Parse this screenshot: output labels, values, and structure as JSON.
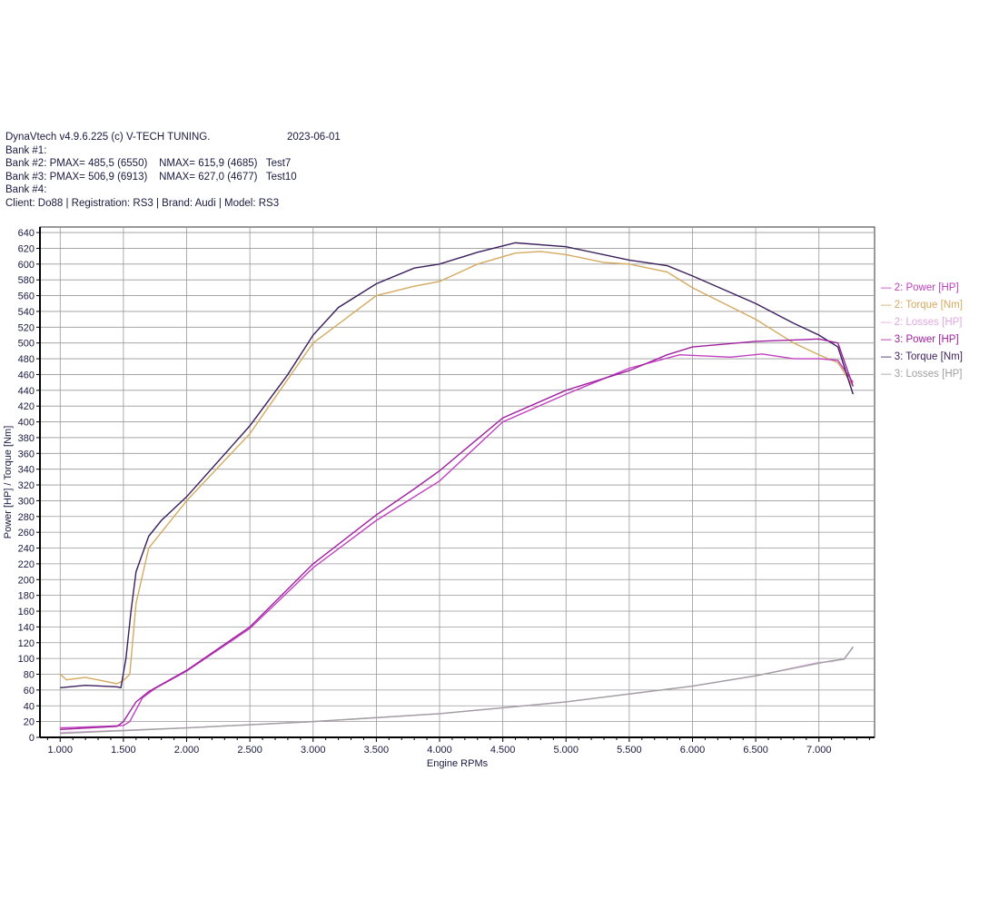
{
  "header": {
    "title": "DynaVtech v4.9.6.225 (c) V-TECH TUNING.",
    "date": "2023-06-01",
    "lines": [
      "Bank #1:",
      "Bank #2: PMAX= 485,5 (6550)    NMAX= 615,9 (4685)   Test7",
      "Bank #3: PMAX= 506,9 (6913)    NMAX= 627,0 (4677)   Test10",
      "Bank #4:",
      "Client: Do88 | Registration: RS3 | Brand: Audi | Model: RS3"
    ]
  },
  "chart_data": {
    "type": "line",
    "xlabel": "Engine RPMs",
    "ylabel": "Power [HP] / Torque [Nm]",
    "xlim": [
      840,
      7440
    ],
    "ylim": [
      0,
      647
    ],
    "xticks": [
      1000,
      1500,
      2000,
      2500,
      3000,
      3500,
      4000,
      4500,
      5000,
      5500,
      6000,
      6500,
      7000
    ],
    "xtick_labels": [
      "1.000",
      "1.500",
      "2.000",
      "2.500",
      "3.000",
      "3.500",
      "4.000",
      "4.500",
      "5.000",
      "5.500",
      "6.000",
      "6.500",
      "7.000"
    ],
    "yticks": [
      0,
      20,
      40,
      60,
      80,
      100,
      120,
      140,
      160,
      180,
      200,
      220,
      240,
      260,
      280,
      300,
      320,
      340,
      360,
      380,
      400,
      420,
      440,
      460,
      480,
      500,
      520,
      540,
      560,
      580,
      600,
      620,
      640
    ],
    "grid": true,
    "legend_position": "right",
    "series": [
      {
        "name": "2: Power [HP]",
        "color": "#c040c0",
        "points": [
          [
            1000,
            12
          ],
          [
            1500,
            15
          ],
          [
            1550,
            20
          ],
          [
            1650,
            50
          ],
          [
            1750,
            62
          ],
          [
            2000,
            84
          ],
          [
            2500,
            138
          ],
          [
            3000,
            215
          ],
          [
            3500,
            275
          ],
          [
            4000,
            325
          ],
          [
            4500,
            400
          ],
          [
            5000,
            435
          ],
          [
            5500,
            468
          ],
          [
            5900,
            485
          ],
          [
            6300,
            482
          ],
          [
            6550,
            486
          ],
          [
            6800,
            480
          ],
          [
            7000,
            480
          ],
          [
            7150,
            478
          ],
          [
            7270,
            450
          ]
        ]
      },
      {
        "name": "2: Torque [Nm]",
        "color": "#d4aa60",
        "points": [
          [
            1000,
            80
          ],
          [
            1050,
            73
          ],
          [
            1200,
            76
          ],
          [
            1450,
            68
          ],
          [
            1500,
            72
          ],
          [
            1550,
            80
          ],
          [
            1600,
            170
          ],
          [
            1700,
            240
          ],
          [
            2000,
            300
          ],
          [
            2500,
            385
          ],
          [
            3000,
            500
          ],
          [
            3500,
            560
          ],
          [
            3800,
            572
          ],
          [
            4000,
            578
          ],
          [
            4300,
            600
          ],
          [
            4600,
            614
          ],
          [
            4800,
            616
          ],
          [
            5000,
            612
          ],
          [
            5300,
            602
          ],
          [
            5500,
            600
          ],
          [
            5800,
            590
          ],
          [
            6000,
            570
          ],
          [
            6500,
            530
          ],
          [
            6800,
            500
          ],
          [
            7000,
            485
          ],
          [
            7150,
            475
          ],
          [
            7270,
            445
          ]
        ]
      },
      {
        "name": "2: Losses [HP]",
        "color": "#e0a8e0",
        "points": [
          [
            1000,
            6
          ],
          [
            2000,
            12
          ],
          [
            3000,
            20
          ],
          [
            4000,
            30
          ],
          [
            5000,
            45
          ],
          [
            6000,
            65
          ],
          [
            6500,
            78
          ],
          [
            7000,
            95
          ],
          [
            7100,
            96
          ],
          [
            7200,
            100
          ],
          [
            7270,
            114
          ]
        ]
      },
      {
        "name": "3: Power [HP]",
        "color": "#a020a0",
        "points": [
          [
            1000,
            10
          ],
          [
            1450,
            14
          ],
          [
            1500,
            20
          ],
          [
            1600,
            45
          ],
          [
            1700,
            58
          ],
          [
            2000,
            85
          ],
          [
            2500,
            140
          ],
          [
            3000,
            220
          ],
          [
            3500,
            282
          ],
          [
            3800,
            315
          ],
          [
            4000,
            338
          ],
          [
            4500,
            405
          ],
          [
            5000,
            440
          ],
          [
            5500,
            465
          ],
          [
            5800,
            485
          ],
          [
            6000,
            495
          ],
          [
            6500,
            502
          ],
          [
            7000,
            505
          ],
          [
            7150,
            500
          ],
          [
            7270,
            445
          ]
        ]
      },
      {
        "name": "3: Torque [Nm]",
        "color": "#3a1f5c",
        "points": [
          [
            1000,
            63
          ],
          [
            1200,
            66
          ],
          [
            1450,
            64
          ],
          [
            1480,
            63
          ],
          [
            1520,
            100
          ],
          [
            1560,
            160
          ],
          [
            1600,
            210
          ],
          [
            1700,
            255
          ],
          [
            1800,
            275
          ],
          [
            2000,
            305
          ],
          [
            2500,
            395
          ],
          [
            2800,
            460
          ],
          [
            3000,
            510
          ],
          [
            3200,
            545
          ],
          [
            3500,
            575
          ],
          [
            3800,
            595
          ],
          [
            4000,
            600
          ],
          [
            4300,
            615
          ],
          [
            4600,
            627
          ],
          [
            5000,
            622
          ],
          [
            5500,
            605
          ],
          [
            5800,
            598
          ],
          [
            6000,
            585
          ],
          [
            6500,
            550
          ],
          [
            6800,
            525
          ],
          [
            7000,
            510
          ],
          [
            7150,
            495
          ],
          [
            7200,
            470
          ],
          [
            7270,
            435
          ]
        ]
      },
      {
        "name": "3: Losses [HP]",
        "color": "#a0a0a0",
        "points": [
          [
            1000,
            5
          ],
          [
            2000,
            12
          ],
          [
            3000,
            20
          ],
          [
            4000,
            30
          ],
          [
            5000,
            45
          ],
          [
            6000,
            65
          ],
          [
            6500,
            78
          ],
          [
            7000,
            94
          ],
          [
            7100,
            97
          ],
          [
            7200,
            99
          ],
          [
            7270,
            115
          ]
        ]
      }
    ]
  }
}
